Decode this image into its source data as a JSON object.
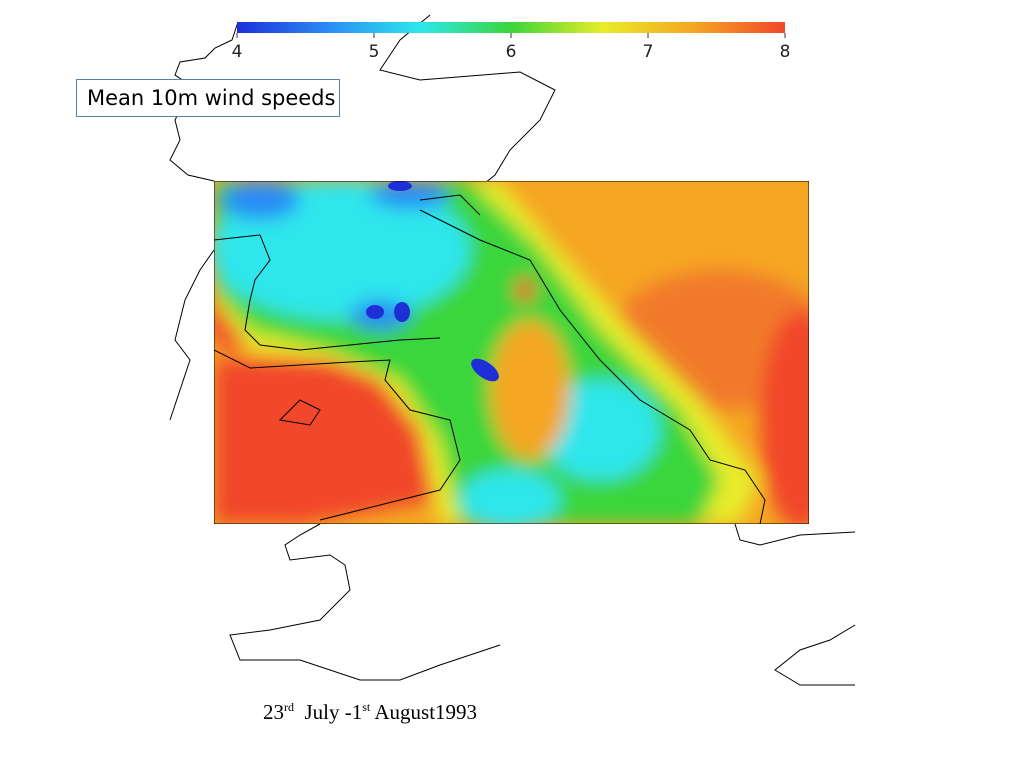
{
  "colorbar": {
    "range": [
      4,
      8
    ],
    "ticks": [
      4,
      5,
      6,
      7,
      8
    ],
    "colors": [
      "#1f2fd8",
      "#2a8cf5",
      "#2ee6ec",
      "#3ad63a",
      "#e8ec2a",
      "#f5a623",
      "#f1472a"
    ]
  },
  "title": "Mean 10m wind speeds",
  "date": {
    "parts": [
      "23",
      "rd",
      "July -1",
      "st",
      "August1993"
    ]
  }
}
